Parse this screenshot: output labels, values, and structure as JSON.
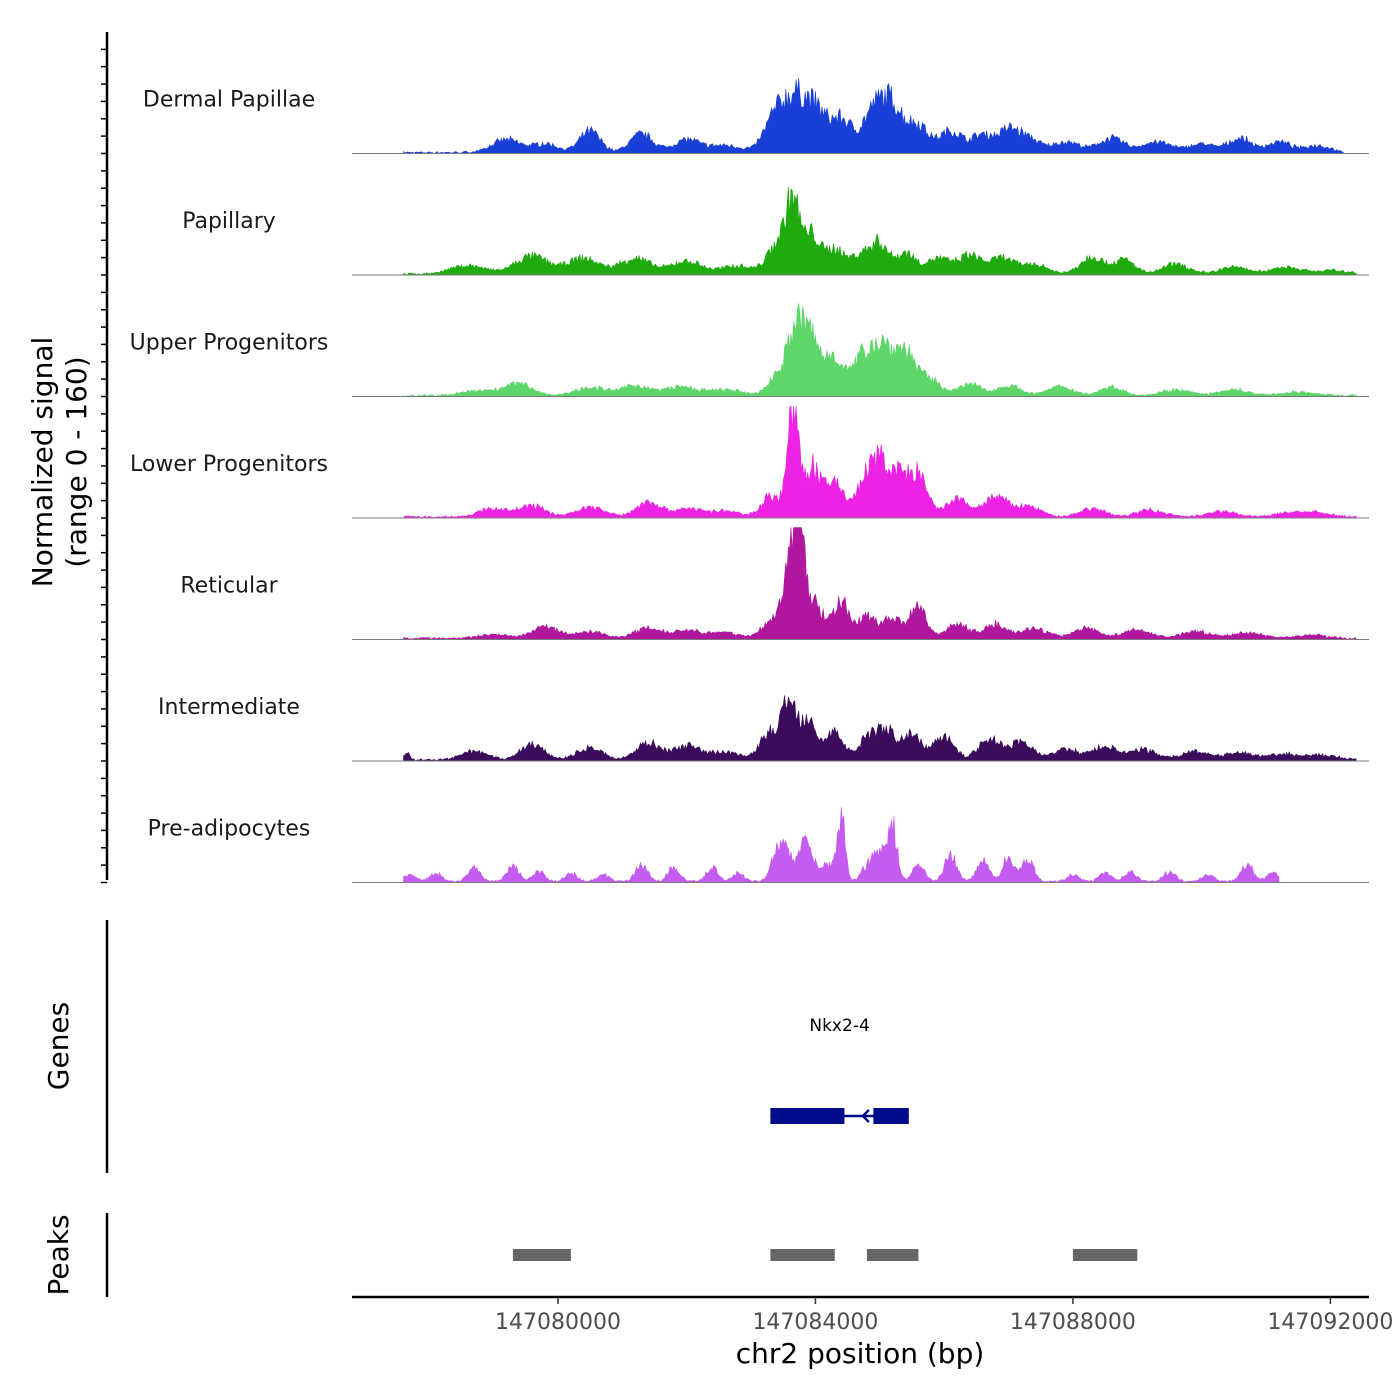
{
  "chart_data": {
    "type": "area",
    "title": "",
    "y_axis_title_line1": "Normalized signal",
    "y_axis_title_line2": "(range 0 - 160)",
    "ylim": [
      0,
      160
    ],
    "xlabel": "chr2 position (bp)",
    "xlim": [
      147076800,
      147092600
    ],
    "x_ticks": [
      147080000,
      147084000,
      147088000,
      147092000
    ],
    "x_tick_labels": [
      "147080000",
      "147084000",
      "147088000",
      "147092000"
    ],
    "genes_panel_label": "Genes",
    "peaks_panel_label": "Peaks",
    "series": [
      {
        "name": "Dermal Papillae",
        "color": "#1a3fd6",
        "start": 147077600,
        "end": 147092200,
        "peaks": [
          [
            147079200,
            18,
            220
          ],
          [
            147079800,
            12,
            200
          ],
          [
            147080500,
            30,
            160
          ],
          [
            147081300,
            26,
            180
          ],
          [
            147082000,
            18,
            200
          ],
          [
            147082600,
            10,
            250
          ],
          [
            147083400,
            55,
            180
          ],
          [
            147083700,
            60,
            160
          ],
          [
            147084000,
            58,
            170
          ],
          [
            147084400,
            45,
            160
          ],
          [
            147084900,
            55,
            180
          ],
          [
            147085200,
            60,
            170
          ],
          [
            147085600,
            38,
            160
          ],
          [
            147086100,
            30,
            170
          ],
          [
            147086600,
            25,
            180
          ],
          [
            147087000,
            28,
            150
          ],
          [
            147087300,
            20,
            180
          ],
          [
            147087900,
            15,
            210
          ],
          [
            147088600,
            20,
            200
          ],
          [
            147089300,
            15,
            220
          ],
          [
            147090000,
            12,
            210
          ],
          [
            147090600,
            20,
            180
          ],
          [
            147091200,
            15,
            180
          ],
          [
            147091800,
            10,
            200
          ]
        ]
      },
      {
        "name": "Papillary",
        "color": "#1faa0e",
        "start": 147077600,
        "end": 147092400,
        "peaks": [
          [
            147078600,
            12,
            260
          ],
          [
            147079600,
            25,
            260
          ],
          [
            147080400,
            22,
            240
          ],
          [
            147081200,
            22,
            240
          ],
          [
            147082000,
            18,
            240
          ],
          [
            147082800,
            12,
            240
          ],
          [
            147083400,
            40,
            150
          ],
          [
            147083650,
            100,
            110
          ],
          [
            147083950,
            55,
            120
          ],
          [
            147084300,
            36,
            140
          ],
          [
            147084700,
            28,
            150
          ],
          [
            147085000,
            42,
            130
          ],
          [
            147085400,
            30,
            150
          ],
          [
            147085900,
            22,
            180
          ],
          [
            147086400,
            26,
            180
          ],
          [
            147086900,
            22,
            180
          ],
          [
            147087400,
            14,
            200
          ],
          [
            147088300,
            25,
            180
          ],
          [
            147088800,
            20,
            160
          ],
          [
            147089600,
            14,
            200
          ],
          [
            147090500,
            10,
            220
          ],
          [
            147091300,
            10,
            220
          ],
          [
            147092000,
            5,
            250
          ]
        ]
      },
      {
        "name": "Upper Progenitors",
        "color": "#5ed66a",
        "start": 147077600,
        "end": 147092400,
        "peaks": [
          [
            147078800,
            8,
            250
          ],
          [
            147079400,
            17,
            200
          ],
          [
            147080500,
            12,
            220
          ],
          [
            147081200,
            14,
            220
          ],
          [
            147081900,
            12,
            240
          ],
          [
            147082600,
            8,
            260
          ],
          [
            147083400,
            25,
            140
          ],
          [
            147083700,
            88,
            140
          ],
          [
            147083950,
            68,
            140
          ],
          [
            147084300,
            55,
            140
          ],
          [
            147084700,
            40,
            140
          ],
          [
            147085000,
            70,
            180
          ],
          [
            147085400,
            60,
            170
          ],
          [
            147085800,
            20,
            160
          ],
          [
            147086400,
            16,
            180
          ],
          [
            147087000,
            14,
            180
          ],
          [
            147087800,
            12,
            200
          ],
          [
            147088600,
            12,
            180
          ],
          [
            147089600,
            8,
            220
          ],
          [
            147090500,
            8,
            220
          ],
          [
            147091500,
            5,
            240
          ]
        ]
      },
      {
        "name": "Lower Progenitors",
        "color": "#ee22e4",
        "start": 147077600,
        "end": 147092400,
        "peaks": [
          [
            147079000,
            12,
            220
          ],
          [
            147079600,
            16,
            200
          ],
          [
            147080500,
            14,
            220
          ],
          [
            147081400,
            22,
            180
          ],
          [
            147082000,
            12,
            220
          ],
          [
            147082600,
            8,
            240
          ],
          [
            147083300,
            30,
            140
          ],
          [
            147083650,
            150,
            90
          ],
          [
            147083950,
            70,
            120
          ],
          [
            147084300,
            50,
            140
          ],
          [
            147084750,
            40,
            140
          ],
          [
            147085000,
            70,
            150
          ],
          [
            147085300,
            50,
            150
          ],
          [
            147085600,
            55,
            140
          ],
          [
            147086200,
            25,
            180
          ],
          [
            147086800,
            28,
            180
          ],
          [
            147087300,
            15,
            200
          ],
          [
            147088300,
            12,
            200
          ],
          [
            147089200,
            10,
            220
          ],
          [
            147090300,
            8,
            220
          ],
          [
            147091400,
            6,
            240
          ],
          [
            147091800,
            5,
            240
          ]
        ]
      },
      {
        "name": "Reticular",
        "color": "#b0179e",
        "start": 147077600,
        "end": 147092400,
        "peaks": [
          [
            147079000,
            6,
            240
          ],
          [
            147079800,
            17,
            200
          ],
          [
            147080500,
            10,
            220
          ],
          [
            147081400,
            15,
            200
          ],
          [
            147082000,
            12,
            220
          ],
          [
            147082600,
            8,
            240
          ],
          [
            147083300,
            25,
            130
          ],
          [
            147083600,
            95,
            110
          ],
          [
            147083750,
            160,
            80
          ],
          [
            147084000,
            50,
            120
          ],
          [
            147084400,
            50,
            130
          ],
          [
            147084800,
            30,
            140
          ],
          [
            147085200,
            30,
            150
          ],
          [
            147085600,
            48,
            120
          ],
          [
            147086200,
            20,
            180
          ],
          [
            147086800,
            20,
            180
          ],
          [
            147087400,
            14,
            200
          ],
          [
            147088200,
            15,
            200
          ],
          [
            147089000,
            12,
            220
          ],
          [
            147089900,
            10,
            220
          ],
          [
            147090700,
            8,
            240
          ],
          [
            147091700,
            5,
            240
          ]
        ]
      },
      {
        "name": "Intermediate",
        "color": "#3c0c5c",
        "start": 147077600,
        "end": 147092400,
        "peaks": [
          [
            147077650,
            12,
            40
          ],
          [
            147078700,
            12,
            200
          ],
          [
            147079600,
            22,
            180
          ],
          [
            147080500,
            17,
            200
          ],
          [
            147081400,
            25,
            180
          ],
          [
            147082000,
            20,
            200
          ],
          [
            147082600,
            12,
            220
          ],
          [
            147083300,
            40,
            150
          ],
          [
            147083600,
            80,
            110
          ],
          [
            147083900,
            62,
            120
          ],
          [
            147084300,
            40,
            130
          ],
          [
            147084800,
            30,
            140
          ],
          [
            147085100,
            40,
            150
          ],
          [
            147085500,
            35,
            150
          ],
          [
            147086000,
            36,
            150
          ],
          [
            147086700,
            30,
            170
          ],
          [
            147087200,
            25,
            180
          ],
          [
            147087900,
            15,
            200
          ],
          [
            147088500,
            20,
            180
          ],
          [
            147089100,
            15,
            200
          ],
          [
            147089900,
            12,
            220
          ],
          [
            147090600,
            10,
            220
          ],
          [
            147091300,
            8,
            240
          ],
          [
            147091900,
            6,
            240
          ]
        ]
      },
      {
        "name": "Pre-adipocytes",
        "color": "#c45cf2",
        "start": 147077600,
        "end": 147091200,
        "peaks": [
          [
            147077700,
            10,
            90
          ],
          [
            147078100,
            12,
            90
          ],
          [
            147078700,
            22,
            90
          ],
          [
            147079300,
            22,
            90
          ],
          [
            147079700,
            14,
            90
          ],
          [
            147080200,
            12,
            90
          ],
          [
            147080700,
            10,
            90
          ],
          [
            147081300,
            25,
            90
          ],
          [
            147081800,
            20,
            90
          ],
          [
            147082400,
            20,
            90
          ],
          [
            147082800,
            12,
            90
          ],
          [
            147083350,
            18,
            80
          ],
          [
            147083500,
            55,
            100
          ],
          [
            147083850,
            60,
            110
          ],
          [
            147084200,
            25,
            90
          ],
          [
            147084400,
            95,
            60
          ],
          [
            147084800,
            20,
            90
          ],
          [
            147085000,
            40,
            100
          ],
          [
            147085200,
            75,
            70
          ],
          [
            147085600,
            25,
            90
          ],
          [
            147086100,
            40,
            90
          ],
          [
            147086600,
            30,
            90
          ],
          [
            147087000,
            35,
            90
          ],
          [
            147087300,
            30,
            90
          ],
          [
            147088000,
            10,
            90
          ],
          [
            147088500,
            14,
            90
          ],
          [
            147088900,
            14,
            90
          ],
          [
            147089500,
            14,
            90
          ],
          [
            147090100,
            10,
            90
          ],
          [
            147090700,
            25,
            90
          ],
          [
            147091100,
            12,
            90
          ]
        ]
      }
    ],
    "genes": [
      {
        "name": "Nkx2-4",
        "strand": "-",
        "start": 147083300,
        "end": 147085450,
        "exons": [
          [
            147083300,
            147084450
          ],
          [
            147084900,
            147085450
          ]
        ],
        "color": "#000c8a"
      }
    ],
    "peaks": [
      [
        147079300,
        147080200
      ],
      [
        147083300,
        147084300
      ],
      [
        147084800,
        147085600
      ],
      [
        147088000,
        147089000
      ]
    ],
    "peak_color": "#666666"
  }
}
